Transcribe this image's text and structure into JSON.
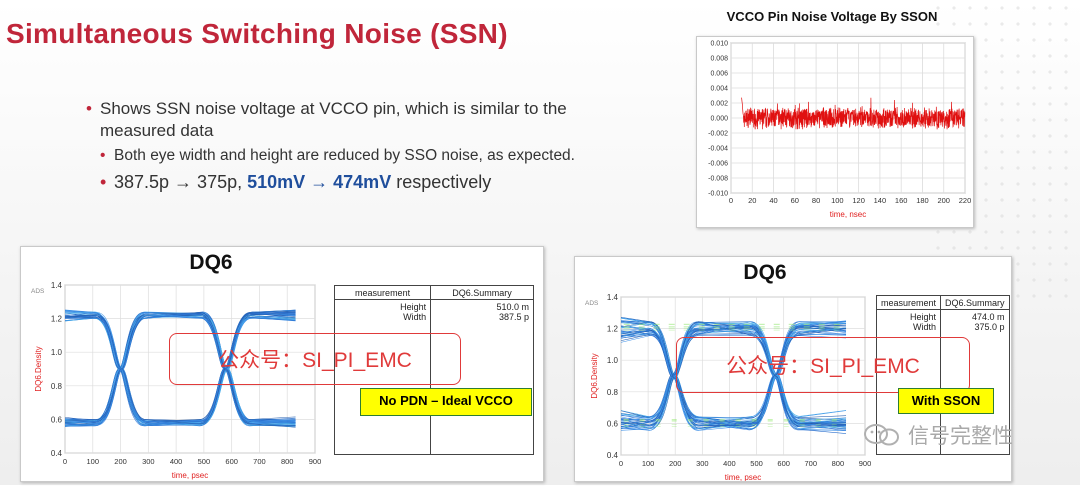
{
  "slide": {
    "title": "Simultaneous Switching Noise (SSN)",
    "bullets": {
      "b1": "Shows SSN noise voltage at VCCO pin, which is similar to the measured data",
      "b2": "Both eye width and height are reduced by SSO noise, as expected.",
      "b3_plain": "387.5p → 375p, ",
      "b3_highlight": "510mV → 474mV",
      "b3_tail": " respectively"
    },
    "footer_watermark": "信号完整性"
  },
  "colors": {
    "title": "#c0263a",
    "highlight": "#1f4e9c",
    "noise": "#e01010",
    "axis_label": "#e02020",
    "eye": "#1c6fd6",
    "tag_fill": "#ffff00"
  },
  "chart_data": [
    {
      "type": "line",
      "title": "VCCO Pin Noise Voltage By SSON",
      "xlabel": "time, nsec",
      "ylabel": "",
      "xlim": [
        0,
        220
      ],
      "ylim": [
        -0.01,
        0.01
      ],
      "xticks": [
        "0",
        "20",
        "40",
        "60",
        "80",
        "100",
        "120",
        "140",
        "160",
        "180",
        "200",
        "220"
      ],
      "yticks": [
        "0.010",
        "0.008",
        "0.006",
        "0.004",
        "0.002",
        "0.000",
        "-0.002",
        "-0.004",
        "-0.006",
        "-0.008",
        "-0.010"
      ],
      "grid": true,
      "series": [
        {
          "description": "noise burst on VCCO pin",
          "x_start": 10,
          "x_end": 220,
          "mean": 0.0,
          "typical_peak": 0.0025,
          "max": 0.003,
          "min": -0.0015
        }
      ]
    },
    {
      "type": "eye",
      "title": "DQ6",
      "corner_label": "ADS",
      "xlabel": "time, psec",
      "ylabel": "DQ6.Density",
      "xlim": [
        0,
        900
      ],
      "ylim": [
        0.4,
        1.4
      ],
      "xticks": [
        "0",
        "100",
        "200",
        "300",
        "400",
        "500",
        "600",
        "700",
        "800",
        "900"
      ],
      "yticks": [
        "1.4",
        "1.2",
        "1.0",
        "0.8",
        "0.6",
        "0.4"
      ],
      "measurement": {
        "col1": "measurement",
        "col2": "DQ6.Summary",
        "labels": [
          "Height",
          "Width"
        ],
        "values": [
          "510.0 m",
          "387.5 p"
        ]
      },
      "eye_params": {
        "high": 1.22,
        "low": 0.58,
        "cross1": 200,
        "cross2": 580,
        "end": 830,
        "spread": 0.02
      },
      "watermark": "公众号：SI_PI_EMC",
      "tag": "No PDN – Ideal VCCO"
    },
    {
      "type": "eye",
      "title": "DQ6",
      "corner_label": "ADS",
      "xlabel": "time, psec",
      "ylabel": "DQ6.Density",
      "xlim": [
        0,
        900
      ],
      "ylim": [
        0.4,
        1.4
      ],
      "xticks": [
        "0",
        "100",
        "200",
        "300",
        "400",
        "500",
        "600",
        "700",
        "800",
        "900"
      ],
      "yticks": [
        "1.4",
        "1.2",
        "1.0",
        "0.8",
        "0.6",
        "0.4"
      ],
      "measurement": {
        "col1": "measurement",
        "col2": "DQ6.Summary",
        "labels": [
          "Height",
          "Width"
        ],
        "values": [
          "474.0 m",
          "375.0 p"
        ]
      },
      "eye_params": {
        "high": 1.2,
        "low": 0.6,
        "cross1": 195,
        "cross2": 570,
        "end": 830,
        "spread": 0.045
      },
      "watermark": "公众号：SI_PI_EMC",
      "tag": "With SSON"
    }
  ]
}
